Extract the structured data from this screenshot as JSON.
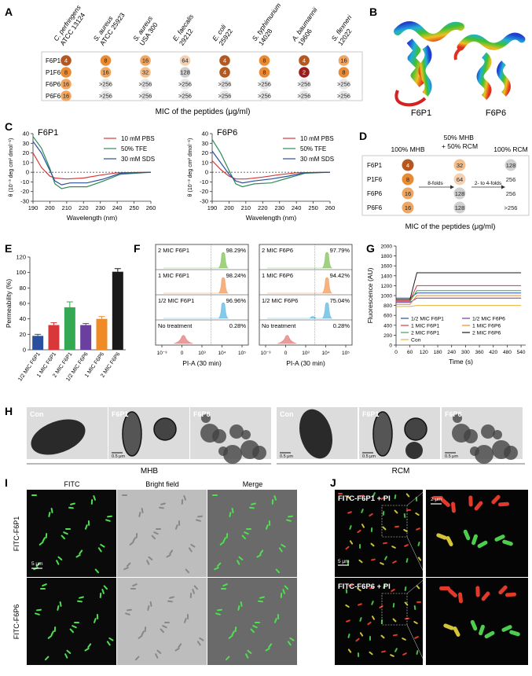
{
  "panel_letters": [
    "A",
    "B",
    "C",
    "D",
    "E",
    "F",
    "G",
    "H",
    "I",
    "J"
  ],
  "panel_a": {
    "strains": [
      "C. perfringens ATCC 13124",
      "S. aureus ATCC 25923",
      "S. aureus USA 300",
      "E. faecalis 29212",
      "E. coli 25922",
      "S. typhimurium 14028",
      "A. baumannii 19606",
      "S. flexneri 12022"
    ],
    "strain_lines": [
      [
        "C. perfringens",
        "ATCC 13124"
      ],
      [
        "S. aureus",
        "ATCC 25923"
      ],
      [
        "S. aureus",
        "USA 300"
      ],
      [
        "E. faecalis",
        "29212"
      ],
      [
        "E. coli",
        "25922"
      ],
      [
        "S. typhimurium",
        "14028"
      ],
      [
        "A. baumannii",
        "19606"
      ],
      [
        "S. flexneri",
        "12022"
      ]
    ],
    "peptides": [
      "F6P1",
      "P1F6",
      "F6P6",
      "P6F6"
    ],
    "mic": [
      [
        "4",
        "8",
        "16",
        "64",
        "4",
        "8",
        "4",
        "16"
      ],
      [
        "8",
        "16",
        "32",
        "128",
        "4",
        "8",
        "2",
        "8"
      ],
      [
        "16",
        ">256",
        ">256",
        ">256",
        ">256",
        ">256",
        ">256",
        ">256"
      ],
      [
        "16",
        ">256",
        ">256",
        ">256",
        ">256",
        ">256",
        ">256",
        ">256"
      ]
    ],
    "caption": "MIC of the peptides (μg/ml)"
  },
  "panel_b": {
    "labels": [
      "F6P1",
      "F6P6"
    ]
  },
  "panel_c": {
    "charts": [
      {
        "title": "F6P1",
        "ylabel": "θ (10⁻³ deg cm² dmol⁻¹)",
        "xlabel": "Wavelength (nm)",
        "xticks": [
          "190",
          "200",
          "210",
          "220",
          "230",
          "240",
          "250",
          "260"
        ],
        "yticks": [
          "40",
          "30",
          "20",
          "10",
          "0",
          "-10",
          "-20",
          "-30"
        ],
        "legend": [
          "10 mM PBS",
          "50% TFE",
          "30 mM SDS"
        ]
      },
      {
        "title": "F6P6",
        "ylabel": "θ (10⁻³ deg cm² dmol⁻¹)",
        "xlabel": "Wavelength (nm)",
        "xticks": [
          "190",
          "200",
          "210",
          "220",
          "230",
          "240",
          "250",
          "260"
        ],
        "yticks": [
          "40",
          "30",
          "20",
          "10",
          "0",
          "-10",
          "-20",
          "-30"
        ],
        "legend": [
          "10 mM PBS",
          "50% TFE",
          "30 mM SDS"
        ]
      }
    ],
    "colors": [
      "#d9383a",
      "#2e8b57",
      "#2a4f9e"
    ]
  },
  "panel_d": {
    "col_headers": [
      "100% MHB",
      "50% MHB\n+ 50% RCM",
      "100% RCM"
    ],
    "peptides": [
      "F6P1",
      "P1F6",
      "F6P6",
      "P6F6"
    ],
    "mhb": [
      "4",
      "8",
      "16",
      "16"
    ],
    "mix": [
      "32",
      "64",
      "128",
      "128"
    ],
    "rcm": [
      "128",
      "256",
      "256",
      ">256"
    ],
    "arrow1": "8-folds",
    "arrow2": "2- to 4-folds",
    "caption": "MIC of the peptides (μg/ml)"
  },
  "panel_e": {
    "ylabel": "Permeability (%)",
    "yticks": [
      "0",
      "20",
      "40",
      "60",
      "80",
      "100",
      "120"
    ],
    "chart_data": {
      "type": "bar",
      "categories": [
        "1/2 MIC F6P1",
        "1 MIC F6P1",
        "2 MIC F6P1",
        "1/2 MIC F6P6",
        "1 MIC F6P6",
        "2 MIC F6P6"
      ],
      "values": [
        18,
        32,
        55,
        32,
        40,
        101
      ],
      "errors": [
        2,
        3,
        7,
        2,
        3,
        4
      ],
      "ylim": [
        0,
        120
      ],
      "colors": [
        "#2a4f9e",
        "#d9383a",
        "#34a853",
        "#6a3fa0",
        "#ef8a24",
        "#1a1a1a"
      ]
    }
  },
  "panel_f": {
    "xlabel": "PI-A (30 min)",
    "xticks": [
      "10⁻³",
      "0",
      "10³",
      "10⁴",
      "10⁵"
    ],
    "left": [
      {
        "label": "2 MIC F6P1",
        "pct": "98.29%"
      },
      {
        "label": "1 MIC F6P1",
        "pct": "98.24%"
      },
      {
        "label": "1/2 MIC F6P1",
        "pct": "96.96%"
      },
      {
        "label": "No treatment",
        "pct": "0.28%"
      }
    ],
    "right": [
      {
        "label": "2 MIC F6P6",
        "pct": "97.79%"
      },
      {
        "label": "1 MIC F6P6",
        "pct": "94.42%"
      },
      {
        "label": "1/2 MIC F6P6",
        "pct": "75.04%"
      },
      {
        "label": "No treatment",
        "pct": "0.28%"
      }
    ],
    "colors": [
      "#8fc96a",
      "#f2a46a",
      "#6fc0e4",
      "#e88a8a"
    ]
  },
  "panel_g": {
    "ylabel": "Fluorescence (AU)",
    "xlabel": "Time (s)",
    "xticks": [
      "0",
      "60",
      "120",
      "180",
      "240",
      "300",
      "360",
      "420",
      "480",
      "540"
    ],
    "yticks": [
      "0",
      "200",
      "400",
      "600",
      "800",
      "1000",
      "1200",
      "1400",
      "1600",
      "1800",
      "2000"
    ],
    "legend": [
      "1/2 MIC F6P1",
      "1 MIC F6P1",
      "2 MIC F6P1",
      "Con",
      "1/2 MIC F6P6",
      "1 MIC F6P6",
      "2 MIC F6P6"
    ],
    "colors": [
      "#2a4f9e",
      "#d9383a",
      "#34a853",
      "#e8b339",
      "#6a3fa0",
      "#ef8a24",
      "#1a1a1a"
    ],
    "chart_data": {
      "type": "line",
      "x": [
        0,
        60,
        90,
        540
      ],
      "series": [
        {
          "name": "1/2 MIC F6P1",
          "values": [
            950,
            950,
            1050,
            1050
          ]
        },
        {
          "name": "1 MIC F6P1",
          "values": [
            900,
            900,
            1200,
            1200
          ]
        },
        {
          "name": "2 MIC F6P1",
          "values": [
            880,
            880,
            1100,
            1100
          ]
        },
        {
          "name": "Con",
          "values": [
            780,
            780,
            800,
            800
          ]
        },
        {
          "name": "1/2 MIC F6P6",
          "values": [
            860,
            860,
            950,
            950
          ]
        },
        {
          "name": "1 MIC F6P6",
          "values": [
            820,
            820,
            1000,
            1000
          ]
        },
        {
          "name": "2 MIC F6P6",
          "values": [
            920,
            920,
            1460,
            1460
          ]
        }
      ],
      "ylim": [
        0,
        2000
      ],
      "xlim": [
        0,
        560
      ]
    }
  },
  "panel_h": {
    "labels": [
      "Con",
      "F6P1",
      "F6P6",
      "Con",
      "F6P1",
      "F6P6"
    ],
    "scale": "0.5 μm",
    "media": [
      "MHB",
      "RCM"
    ]
  },
  "panel_i": {
    "cols": [
      "FITC",
      "Bright field",
      "Merge"
    ],
    "rows": [
      "FITC-F6P1",
      "FITC-F6P6"
    ],
    "scale": "5 μm"
  },
  "panel_j": {
    "labels": [
      "FITC-F6P1 + PI",
      "FITC-F6P6 + PI"
    ],
    "scale_left": "5 μm",
    "scale_right": "2 μm"
  }
}
